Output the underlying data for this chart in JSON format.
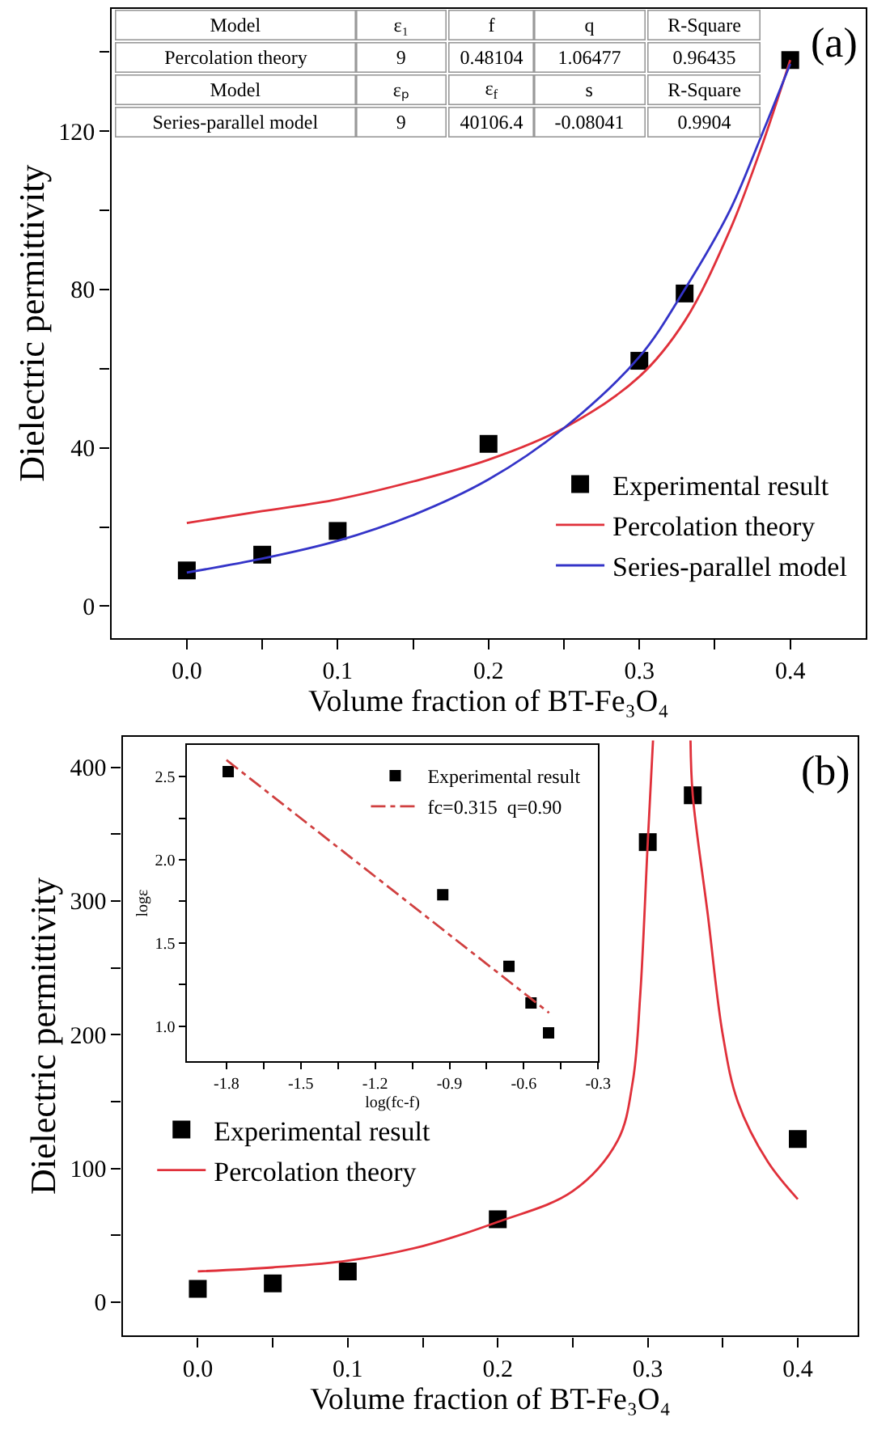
{
  "chart_data": [
    {
      "type": "scatter",
      "xlabel": "Volume fraction of BT-Fe₃O₄",
      "ylabel": "Dielectric permittivity",
      "annotations": [
        "(a)",
        "Model",
        "ε₁",
        "f",
        "q",
        "R-Square",
        "Percolation theory",
        "9",
        "0.48104",
        "1.06477",
        "0.96435",
        "Model",
        "εₚ",
        "ε$_{f}$",
        "s",
        "R-Square",
        "Series-parallel model",
        "9",
        "40106.4",
        "-0.08041",
        "0.9904"
      ],
      "xlim": [
        -0.05,
        0.45
      ],
      "ylim": [
        -8,
        151
      ],
      "xticks": [
        {
          "value": 0,
          "label": "0.0"
        },
        {
          "value": 0.05,
          "label": null
        },
        0.1,
        {
          "value": 0.15,
          "label": null
        },
        0.2,
        {
          "value": 0.25,
          "label": null
        },
        0.3,
        {
          "value": 0.35,
          "label": null
        },
        0.4
      ],
      "yticks": [
        0,
        {
          "value": 20,
          "label": null
        },
        40,
        {
          "value": 60,
          "label": null
        },
        80,
        {
          "value": 100,
          "label": null
        },
        120,
        {
          "value": 140,
          "label": null
        }
      ],
      "legend": "bottom right",
      "series": [
        {
          "name": "Experimental result",
          "marker": "square",
          "color": "#000000",
          "x": [
            0,
            0.05,
            0.1,
            0.2,
            0.3,
            0.33,
            0.4
          ],
          "values": [
            9,
            13,
            19,
            41,
            62,
            79,
            138
          ]
        },
        {
          "name": "Percolation theory",
          "type": "line",
          "color": "#e0303a",
          "x": [
            0,
            0.05,
            0.1,
            0.15,
            0.2,
            0.25,
            0.3,
            0.33,
            0.36,
            0.38,
            0.4
          ],
          "values": [
            21,
            24,
            27,
            31.5,
            37,
            45,
            58,
            72,
            95,
            115,
            138
          ]
        },
        {
          "name": "Series-parallel model",
          "type": "line",
          "color": "#3434c8",
          "x": [
            0,
            0.05,
            0.1,
            0.15,
            0.2,
            0.25,
            0.3,
            0.33,
            0.36,
            0.38,
            0.4
          ],
          "values": [
            8.5,
            12,
            16.5,
            23,
            32,
            45,
            63,
            80,
            100,
            118,
            137
          ]
        }
      ]
    },
    {
      "type": "scatter",
      "xlabel": "Volume fraction of BT-Fe₃O₄",
      "ylabel": "Dielectric permittivity",
      "annotations": [
        "(b)"
      ],
      "xlim": [
        -0.05,
        0.44
      ],
      "ylim": [
        -25,
        423
      ],
      "xticks": [
        {
          "value": 0,
          "label": "0.0"
        },
        {
          "value": 0.05,
          "label": null
        },
        0.1,
        {
          "value": 0.15,
          "label": null
        },
        0.2,
        {
          "value": 0.25,
          "label": null
        },
        0.3,
        {
          "value": 0.35,
          "label": null
        },
        0.4
      ],
      "yticks": [
        0,
        {
          "value": 50,
          "label": null
        },
        100,
        {
          "value": 150,
          "label": null
        },
        200,
        {
          "value": 250,
          "label": null
        },
        300,
        {
          "value": 350,
          "label": null
        },
        400
      ],
      "legend": "bottom left",
      "series": [
        {
          "name": "Experimental result",
          "marker": "square",
          "color": "#000000",
          "x": [
            0,
            0.05,
            0.1,
            0.2,
            0.3,
            0.33,
            0.4
          ],
          "values": [
            10,
            14,
            23,
            62,
            344,
            379,
            122
          ]
        },
        {
          "name": "Percolation theory",
          "type": "line",
          "color": "#e0303a",
          "x": [
            0,
            0.05,
            0.1,
            0.15,
            0.2,
            0.25,
            0.28,
            0.29,
            0.295,
            0.3,
            0.3035,
            null,
            0.3285,
            0.33,
            0.34,
            0.35,
            0.36,
            0.38,
            0.4
          ],
          "values": [
            23,
            26,
            31,
            42,
            60,
            83,
            121,
            165,
            230,
            344,
            420,
            null,
            420,
            379,
            290,
            200,
            150,
            105,
            77
          ]
        }
      ]
    },
    {
      "type": "scatter",
      "xlabel": "log(fc-f)",
      "ylabel": "logε",
      "xlim": [
        -1.96,
        -0.3
      ],
      "ylim": [
        0.79,
        2.69
      ],
      "xticks": [
        -1.8,
        {
          "value": -1.65,
          "label": null
        },
        -1.5,
        {
          "value": -1.35,
          "label": null
        },
        -1.2,
        {
          "value": -1.05,
          "label": null
        },
        -0.9,
        {
          "value": -0.75,
          "label": null
        },
        -0.6,
        {
          "value": -0.45,
          "label": null
        },
        -0.3
      ],
      "yticks": [
        {
          "value": 1,
          "label": "1.0"
        },
        {
          "value": 1.25,
          "label": null
        },
        1.5,
        {
          "value": 1.75,
          "label": null
        },
        {
          "value": 2,
          "label": "2.0"
        },
        {
          "value": 2.25,
          "label": null
        },
        2.5
      ],
      "legend": "top right",
      "series": [
        {
          "name": "Experimental result",
          "marker": "square",
          "color": "#000000",
          "x": [
            -1.793,
            -0.927,
            -0.66,
            -0.571,
            -0.5
          ],
          "values": [
            2.53,
            1.79,
            1.36,
            1.14,
            0.96
          ]
        },
        {
          "name": "fc=0.315  q=0.90",
          "type": "line",
          "line_style": "dashdot",
          "color": "#d04040",
          "x": [
            -1.8,
            -0.498
          ],
          "values": [
            2.6,
            1.08
          ]
        }
      ]
    }
  ]
}
